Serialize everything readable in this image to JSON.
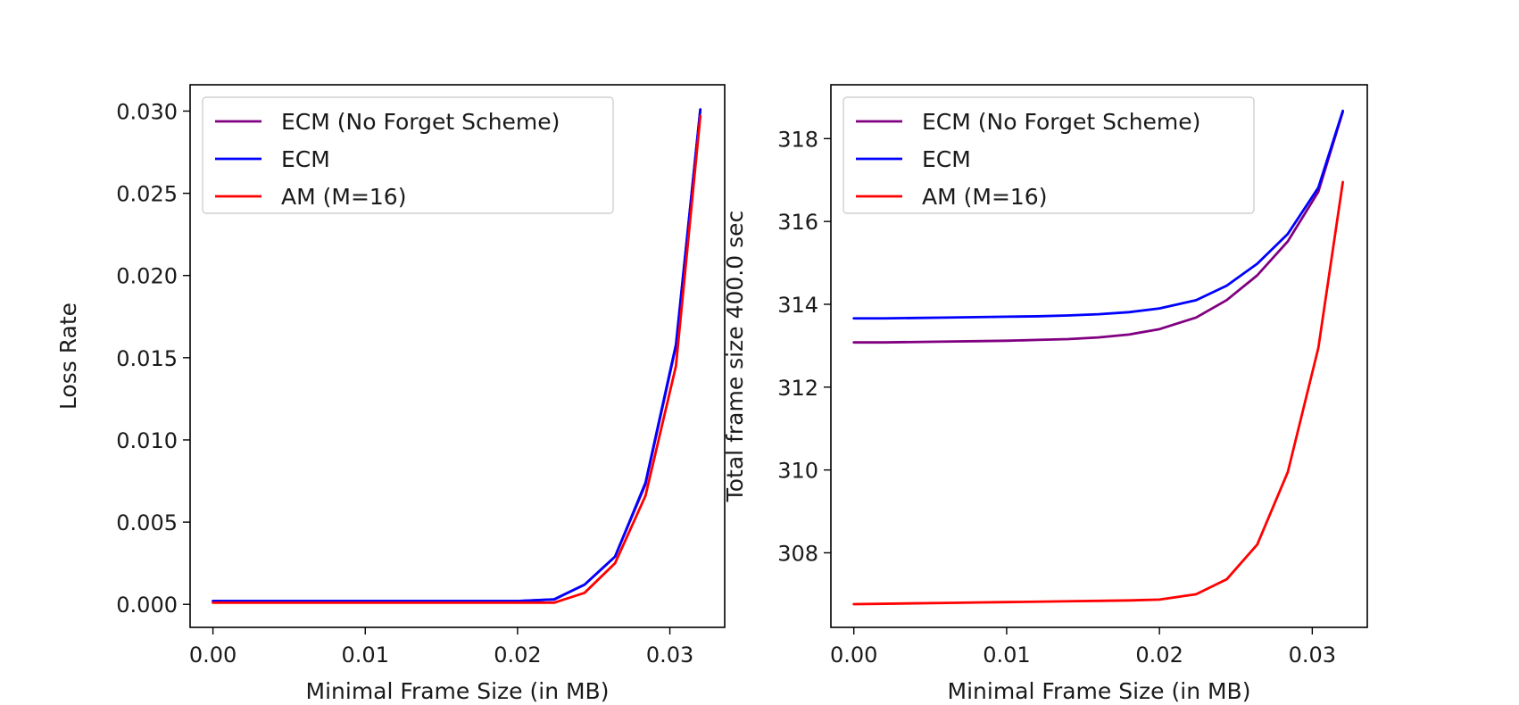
{
  "colors": {
    "no_forget": "#800080",
    "ecm": "#0000ff",
    "am": "#ff0000"
  },
  "chart_data": [
    {
      "type": "line",
      "title": "",
      "xlabel": "Minimal Frame Size (in MB)",
      "ylabel": "Loss Rate",
      "xlim": [
        -0.0015,
        0.0336
      ],
      "ylim": [
        -0.0014,
        0.0316
      ],
      "xticks": [
        "0.00",
        "0.01",
        "0.02",
        "0.03"
      ],
      "xtick_values": [
        0.0,
        0.01,
        0.02,
        0.03
      ],
      "yticks": [
        "0.000",
        "0.005",
        "0.010",
        "0.015",
        "0.020",
        "0.025",
        "0.030"
      ],
      "ytick_values": [
        0.0,
        0.005,
        0.01,
        0.015,
        0.02,
        0.025,
        0.03
      ],
      "legend_position": "upper-left",
      "grid": false,
      "series": [
        {
          "name": "ECM (No Forget Scheme)",
          "color": "#800080",
          "x": [
            0.0,
            0.002,
            0.004,
            0.006,
            0.008,
            0.01,
            0.012,
            0.014,
            0.016,
            0.018,
            0.02,
            0.0224,
            0.0244,
            0.0264,
            0.0284,
            0.0304,
            0.032
          ],
          "y": [
            0.0002,
            0.0002,
            0.0002,
            0.0002,
            0.0002,
            0.0002,
            0.0002,
            0.0002,
            0.0002,
            0.0002,
            0.0002,
            0.0003,
            0.0012,
            0.0029,
            0.0073,
            0.0157,
            0.0301
          ]
        },
        {
          "name": "ECM",
          "color": "#0000ff",
          "x": [
            0.0,
            0.002,
            0.004,
            0.006,
            0.008,
            0.01,
            0.012,
            0.014,
            0.016,
            0.018,
            0.02,
            0.0224,
            0.0244,
            0.0264,
            0.0284,
            0.0304,
            0.032
          ],
          "y": [
            0.0002,
            0.0002,
            0.0002,
            0.0002,
            0.0002,
            0.0002,
            0.0002,
            0.0002,
            0.0002,
            0.0002,
            0.0002,
            0.0003,
            0.0012,
            0.0029,
            0.0074,
            0.0158,
            0.0301
          ]
        },
        {
          "name": "AM (M=16)",
          "color": "#ff0000",
          "x": [
            0.0,
            0.002,
            0.004,
            0.006,
            0.008,
            0.01,
            0.012,
            0.014,
            0.016,
            0.018,
            0.02,
            0.0224,
            0.0244,
            0.0264,
            0.0284,
            0.0304,
            0.032
          ],
          "y": [
            0.0001,
            0.0001,
            0.0001,
            0.0001,
            0.0001,
            0.0001,
            0.0001,
            0.0001,
            0.0001,
            0.0001,
            0.0001,
            0.0001,
            0.0007,
            0.0025,
            0.0066,
            0.0145,
            0.0297
          ]
        }
      ]
    },
    {
      "type": "line",
      "title": "",
      "xlabel": "Minimal Frame Size (in MB)",
      "ylabel": "Total frame size 400.0 sec",
      "xlim": [
        -0.0015,
        0.0336
      ],
      "ylim": [
        306.2,
        319.3
      ],
      "xticks": [
        "0.00",
        "0.01",
        "0.02",
        "0.03"
      ],
      "xtick_values": [
        0.0,
        0.01,
        0.02,
        0.03
      ],
      "yticks": [
        "308",
        "310",
        "312",
        "314",
        "316",
        "318"
      ],
      "ytick_values": [
        308,
        310,
        312,
        314,
        316,
        318
      ],
      "legend_position": "upper-left",
      "grid": false,
      "series": [
        {
          "name": "ECM (No Forget Scheme)",
          "color": "#800080",
          "x": [
            0.0,
            0.002,
            0.004,
            0.006,
            0.008,
            0.01,
            0.012,
            0.014,
            0.016,
            0.018,
            0.02,
            0.0224,
            0.0244,
            0.0264,
            0.0284,
            0.0304,
            0.032
          ],
          "y": [
            313.08,
            313.08,
            313.09,
            313.1,
            313.11,
            313.12,
            313.14,
            313.16,
            313.2,
            313.27,
            313.4,
            313.68,
            314.1,
            314.7,
            315.52,
            316.72,
            318.65
          ]
        },
        {
          "name": "ECM",
          "color": "#0000ff",
          "x": [
            0.0,
            0.002,
            0.004,
            0.006,
            0.008,
            0.01,
            0.012,
            0.014,
            0.016,
            0.018,
            0.02,
            0.0224,
            0.0244,
            0.0264,
            0.0284,
            0.0304,
            0.032
          ],
          "y": [
            313.66,
            313.66,
            313.67,
            313.68,
            313.69,
            313.7,
            313.71,
            313.73,
            313.76,
            313.81,
            313.9,
            314.1,
            314.45,
            314.98,
            315.7,
            316.82,
            318.67
          ]
        },
        {
          "name": "AM (M=16)",
          "color": "#ff0000",
          "x": [
            0.0,
            0.002,
            0.004,
            0.006,
            0.008,
            0.01,
            0.012,
            0.014,
            0.016,
            0.018,
            0.02,
            0.0224,
            0.0244,
            0.0264,
            0.0284,
            0.0304,
            0.032
          ],
          "y": [
            306.76,
            306.77,
            306.78,
            306.79,
            306.8,
            306.81,
            306.82,
            306.83,
            306.84,
            306.85,
            306.87,
            307.0,
            307.36,
            308.2,
            309.95,
            312.95,
            316.95
          ]
        }
      ]
    }
  ]
}
